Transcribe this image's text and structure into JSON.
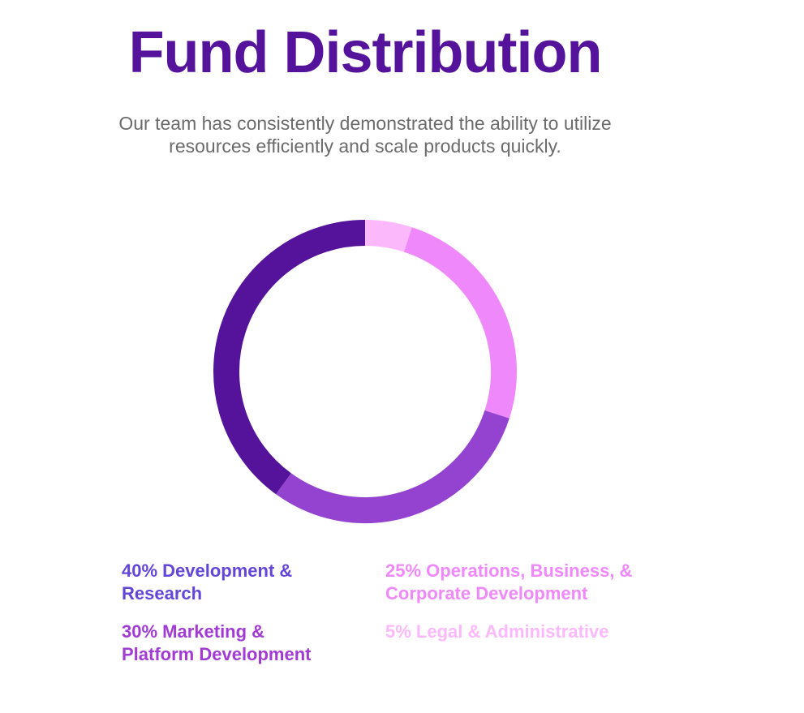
{
  "header": {
    "title": "Fund Distribution",
    "subtitle_line1": "Our team has consistently demonstrated the ability to utilize",
    "subtitle_line2": "resources efficiently and scale products quickly."
  },
  "chart_data": {
    "type": "pie",
    "title": "Fund Distribution",
    "slices": [
      {
        "label": "Legal & Administrative",
        "value": 5,
        "color": "#fbb8fb"
      },
      {
        "label": "Operations, Business, & Corporate Development",
        "value": 25,
        "color": "#ef88fb"
      },
      {
        "label": "Marketing & Platform Development",
        "value": 30,
        "color": "#9443d0"
      },
      {
        "label": "Development & Research",
        "value": 40,
        "color": "#54139a"
      }
    ]
  },
  "legend": [
    {
      "line1": "40% Development &",
      "line2": "Research",
      "color": "#6246d8"
    },
    {
      "line1": "25% Operations, Business, &",
      "line2": "Corporate Development",
      "color": "#ef88fb"
    },
    {
      "line1": "30% Marketing &",
      "line2": "Platform Development",
      "color": "#a23ad4"
    },
    {
      "line1": "5% Legal & Administrative",
      "line2": "",
      "color": "#fbb8fb"
    }
  ]
}
